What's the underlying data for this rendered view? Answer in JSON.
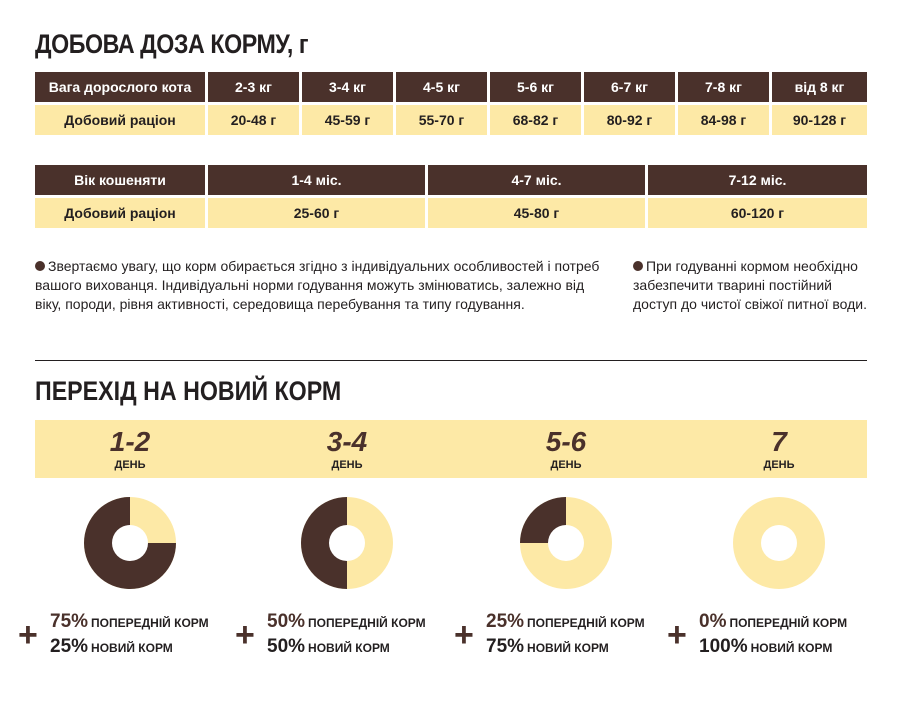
{
  "dose": {
    "title": "ДОБОВА ДОЗА КОРМУ, г",
    "adult": {
      "header_label": "Вага дорослого кота",
      "row_label": "Добовий раціон",
      "weights": [
        "2-3 кг",
        "3-4 кг",
        "4-5 кг",
        "5-6 кг",
        "6-7 кг",
        "7-8 кг",
        "від 8 кг"
      ],
      "rations": [
        "20-48 г",
        "45-59 г",
        "55-70 г",
        "68-82 г",
        "80-92 г",
        "84-98 г",
        "90-128 г"
      ]
    },
    "kitten": {
      "header_label": "Вік кошеняти",
      "row_label": "Добовий раціон",
      "ages": [
        "1-4 міс.",
        "4-7 міс.",
        "7-12 міс."
      ],
      "rations": [
        "25-60 г",
        "45-80 г",
        "60-120 г"
      ]
    },
    "note_left": "Звертаємо увагу, що корм обирається згідно з індивідуальних особливостей і потреб вашого вихованця. Індивідуальні норми годування можуть змінюватись, залежно від віку, породи, рівня активності, середовища перебування та типу годування.",
    "note_right": "При годуванні кормом необхідно забезпечити тварині постійний доступ до чистої свіжої питної води."
  },
  "transition": {
    "title": "ПЕРЕХІД НА НОВИЙ КОРМ",
    "day_label": "ДЕНЬ",
    "old_label": "ПОПЕРЕДНІЙ КОРМ",
    "new_label": "НОВИЙ КОРМ",
    "stages": [
      {
        "days": "1-2",
        "old_pct": "75%",
        "new_pct": "25%",
        "old_fraction": 0.75
      },
      {
        "days": "3-4",
        "old_pct": "50%",
        "new_pct": "50%",
        "old_fraction": 0.5
      },
      {
        "days": "5-6",
        "old_pct": "25%",
        "new_pct": "75%",
        "old_fraction": 0.25
      },
      {
        "days": "7",
        "old_pct": "0%",
        "new_pct": "100%",
        "old_fraction": 0
      }
    ]
  },
  "colors": {
    "brown": "#4a312b",
    "cream": "#fde9a6",
    "text": "#231f20"
  }
}
